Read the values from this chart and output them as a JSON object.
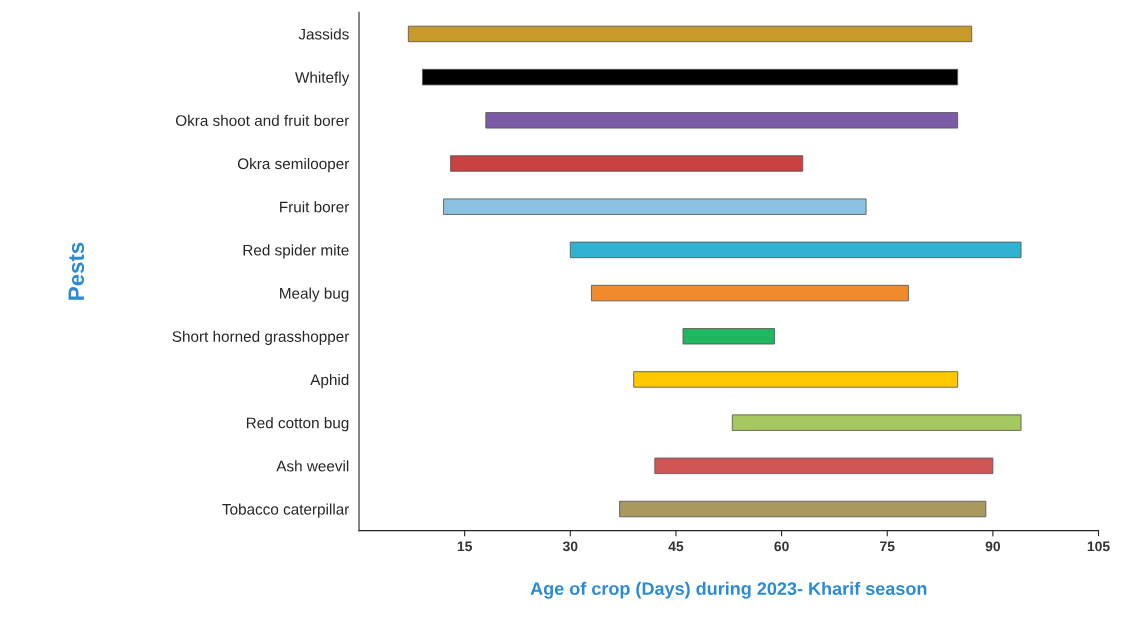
{
  "chart_data": {
    "type": "bar",
    "orientation": "horizontal",
    "xlabel": "Age of crop (Days) during 2023- Kharif season",
    "ylabel": "Pests",
    "categories": [
      "Jassids",
      "Whitefly",
      "Okra shoot and fruit borer",
      "Okra semilooper",
      "Fruit borer",
      "Red spider mite",
      "Mealy bug",
      "Short horned grasshopper",
      "Aphid",
      "Red cotton bug",
      "Ash weevil",
      "Tobacco caterpillar"
    ],
    "base": [
      7,
      9,
      18,
      13,
      12,
      30,
      33,
      46,
      39,
      53,
      42,
      37
    ],
    "values": [
      80,
      76,
      67,
      50,
      60,
      64,
      45,
      13,
      46,
      41,
      48,
      52
    ],
    "colors": [
      "#c89a2a",
      "#000000",
      "#7b5aa6",
      "#c94040",
      "#8cc0e0",
      "#2fb3d0",
      "#f08a2a",
      "#1fb860",
      "#ffc800",
      "#a6c860",
      "#d05555",
      "#a89a5e"
    ],
    "xlim": [
      0,
      105
    ],
    "xticks": [
      15,
      30,
      45,
      60,
      75,
      90,
      105
    ],
    "grid": false,
    "legend": false
  }
}
